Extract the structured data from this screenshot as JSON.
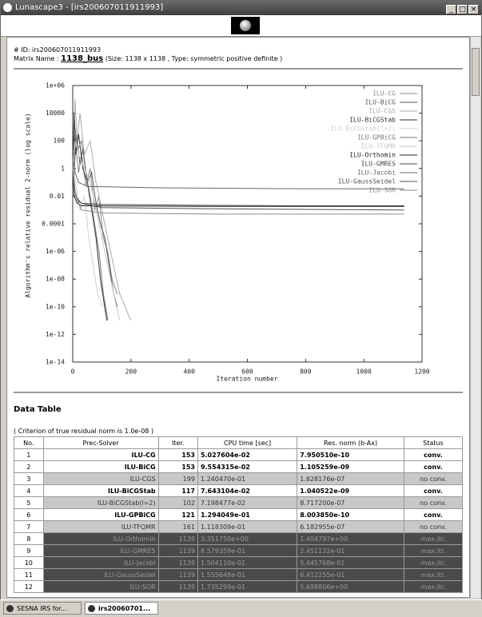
{
  "window": {
    "title": "Lunascape3 - [irs200607011911993]"
  },
  "header": {
    "id": "# ID: irs200607011911993",
    "matrix_label": "Matrix Name :",
    "matrix_name": "1138_bus",
    "matrix_info": "(Size: 1138 x 1138 , Type: symmetric positive definite )"
  },
  "chart_data": {
    "type": "line",
    "y_label": "Algorithm's relative residual 2-norm (log scale)",
    "x_label": "Iteration number",
    "ylog": true,
    "xlim": [
      0,
      1200
    ],
    "xticks": [
      0,
      200,
      400,
      600,
      800,
      1000,
      1200
    ],
    "ylim": [
      1e-14,
      1000000
    ],
    "yticks": [
      {
        "value": 1e-14,
        "label": "1e-14"
      },
      {
        "value": 1e-12,
        "label": "1e-12"
      },
      {
        "value": 1e-10,
        "label": "1e-10"
      },
      {
        "value": 1e-08,
        "label": "1e-08"
      },
      {
        "value": 1e-06,
        "label": "1e-06"
      },
      0.0001,
      0.01,
      1,
      100,
      10000,
      {
        "value": 1000000,
        "label": "1e+06"
      }
    ],
    "series": [
      {
        "name": "ILU-CG",
        "color": "#888888",
        "x": [
          0,
          5,
          10,
          20,
          30,
          45,
          60,
          75,
          90,
          105,
          120,
          135,
          153
        ],
        "values": [
          1,
          0.3,
          50,
          0.5,
          10,
          0.05,
          1,
          0.001,
          0.01,
          1e-05,
          1e-06,
          1e-08,
          8e-10
        ]
      },
      {
        "name": "ILU-BiCG",
        "color": "#555555",
        "x": [
          0,
          6,
          12,
          25,
          35,
          50,
          65,
          80,
          95,
          110,
          125,
          140,
          153
        ],
        "values": [
          1,
          5,
          200,
          2,
          30,
          0.1,
          0.5,
          0.003,
          0.0001,
          1e-05,
          1e-07,
          1e-09,
          1e-10
        ]
      },
      {
        "name": "ILU-CGS",
        "color": "#aaaaaa",
        "x": [
          0,
          4,
          8,
          15,
          25,
          40,
          60,
          80,
          100,
          120,
          140,
          160,
          180,
          199
        ],
        "values": [
          1,
          1000,
          100000,
          100,
          10000,
          10,
          100,
          0.1,
          0.001,
          1e-05,
          1e-07,
          1e-09,
          1e-10,
          1e-11
        ]
      },
      {
        "name": "ILU-BiCGStab",
        "color": "#333333",
        "x": [
          0,
          5,
          10,
          20,
          35,
          50,
          65,
          80,
          95,
          117
        ],
        "values": [
          1,
          10000,
          10,
          300,
          1,
          0.1,
          0.001,
          1e-05,
          1e-08,
          1e-11
        ]
      },
      {
        "name": "ILU-BiCGStab(l=2)",
        "color": "#d0d0d0",
        "x": [
          0,
          10,
          25,
          40,
          55,
          70,
          85,
          102
        ],
        "values": [
          1,
          0.1,
          0.001,
          0.01,
          1e-05,
          1e-07,
          1e-09,
          1e-10
        ]
      },
      {
        "name": "ILU-GPBiCG",
        "color": "#777777",
        "x": [
          0,
          8,
          16,
          30,
          45,
          60,
          75,
          90,
          105,
          121
        ],
        "values": [
          1,
          1000,
          20,
          100,
          0.5,
          0.01,
          0.0001,
          1e-06,
          1e-09,
          1e-11
        ]
      },
      {
        "name": "ILU-TFQMR",
        "color": "#c8c8c8",
        "x": [
          0,
          10,
          20,
          40,
          60,
          80,
          100,
          120,
          140,
          161
        ],
        "values": [
          1,
          100,
          10,
          1,
          0.1,
          0.001,
          1e-05,
          1e-07,
          1e-09,
          1e-11
        ]
      },
      {
        "name": "ILU-Orthomin",
        "color": "#222222",
        "x": [
          0,
          5,
          15,
          30,
          60,
          200,
          500,
          800,
          1139
        ],
        "values": [
          1,
          0.01,
          0.003,
          0.002,
          0.002,
          0.0019,
          0.0018,
          0.0018,
          0.0018
        ]
      },
      {
        "name": "ILU-GMRES",
        "color": "#444444",
        "x": [
          0,
          5,
          15,
          30,
          100,
          400,
          800,
          1139
        ],
        "values": [
          1,
          0.05,
          0.005,
          0.003,
          0.0025,
          0.0022,
          0.002,
          0.002
        ]
      },
      {
        "name": "ILU-Jacobi",
        "color": "#666666",
        "x": [
          0,
          3,
          8,
          20,
          50,
          300,
          700,
          1139
        ],
        "values": [
          1,
          3,
          0.5,
          0.1,
          0.05,
          0.04,
          0.035,
          0.033
        ]
      },
      {
        "name": "ILU-GaussSeidel",
        "color": "#505050",
        "x": [
          0,
          3,
          10,
          30,
          100,
          500,
          1139
        ],
        "values": [
          1,
          0.3,
          0.01,
          0.003,
          0.0015,
          0.0012,
          0.001
        ]
      },
      {
        "name": "ILU-SOR",
        "color": "#8a8a8a",
        "x": [
          0,
          3,
          10,
          30,
          100,
          500,
          1139
        ],
        "values": [
          1,
          0.2,
          0.01,
          0.001,
          0.0006,
          0.0005,
          0.0005
        ]
      }
    ]
  },
  "table": {
    "title": "Data Table",
    "criterion": "( Criterion of true residual norm is 1.0e-08 )",
    "headers": [
      "No.",
      "Prec-Solver",
      "Iter.",
      "CPU time [sec]",
      "Res. norm (b-Ax)",
      "Status"
    ],
    "rows": [
      [
        "1",
        "ILU-CG",
        "153",
        "5.027604e-02",
        "7.950510e-10",
        "conv."
      ],
      [
        "2",
        "ILU-BiCG",
        "153",
        "9.554315e-02",
        "1.105259e-09",
        "conv."
      ],
      [
        "3",
        "ILU-CGS",
        "199",
        "1.240470e-01",
        "1.828176e-07",
        "no conv."
      ],
      [
        "4",
        "ILU-BiCGStab",
        "117",
        "7.643104e-02",
        "1.040522e-09",
        "conv."
      ],
      [
        "5",
        "ILU-BiCGStab(l=2)",
        "102",
        "7.198477e-02",
        "8.717200e-07",
        "no conv."
      ],
      [
        "6",
        "ILU-GPBiCG",
        "121",
        "1.294049e-01",
        "8.003850e-10",
        "conv."
      ],
      [
        "7",
        "ILU-TFQMR",
        "161",
        "1.118309e-01",
        "6.182955e-07",
        "no conv."
      ],
      [
        "8",
        "ILU-Orthomin",
        "1139",
        "3.351750e+00",
        "1.404797e+00",
        "max.itr."
      ],
      [
        "9",
        "ILU-GMRES",
        "1139",
        "8.579359e-01",
        "2.451132e-01",
        "max.itr."
      ],
      [
        "10",
        "ILU-Jacobi",
        "1139",
        "1.504110e-01",
        "5.445768e-01",
        "max.itr."
      ],
      [
        "11",
        "ILU-GaussSeidel",
        "1139",
        "1.555648e-01",
        "6.412255e-01",
        "max.itr."
      ],
      [
        "12",
        "ILU-SOR",
        "1139",
        "1.735299e-01",
        "5.698806e+00",
        "max.itr."
      ]
    ],
    "row_fills": [
      "#ffffff",
      "#ffffff",
      "#c8c8c8",
      "#ffffff",
      "#c8c8c8",
      "#ffffff",
      "#c8c8c8",
      "#4a4a4a",
      "#4a4a4a",
      "#4a4a4a",
      "#4a4a4a",
      "#4a4a4a"
    ],
    "row_text_colors": [
      "#000000",
      "#000000",
      "#333333",
      "#000000",
      "#333333",
      "#000000",
      "#333333",
      "#9a9a9a",
      "#9a9a9a",
      "#9a9a9a",
      "#9a9a9a",
      "#9a9a9a"
    ]
  },
  "taskbar": {
    "tabs": [
      "SESNA IRS for...",
      "irs20060701..."
    ]
  }
}
